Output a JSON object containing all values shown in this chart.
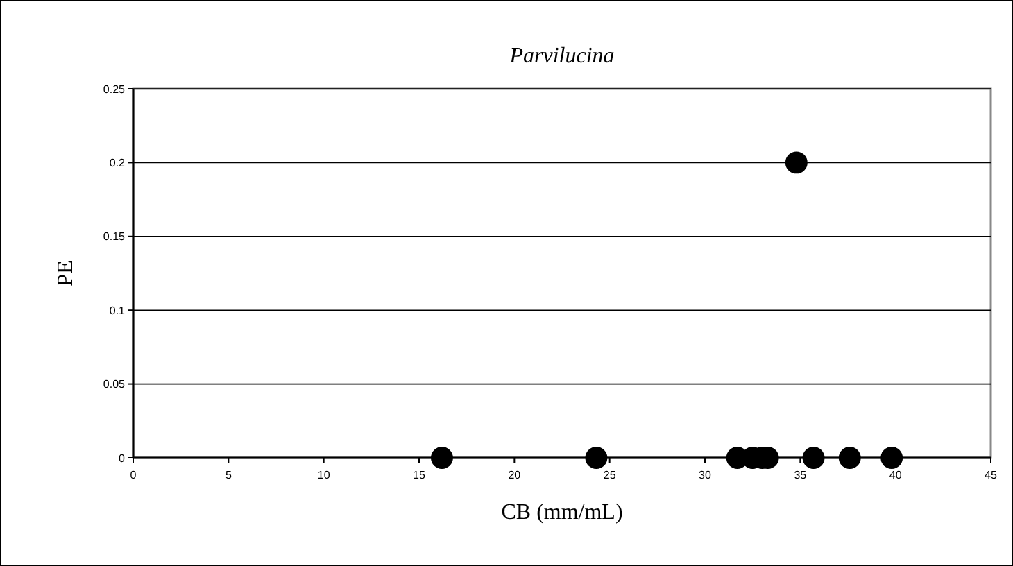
{
  "chart_data": {
    "type": "scatter",
    "title": "Parvilucina",
    "xlabel": "CB (mm/mL)",
    "ylabel": "PE",
    "x": [
      16.2,
      24.3,
      31.7,
      32.5,
      33.0,
      33.3,
      34.8,
      35.7,
      37.6,
      39.8
    ],
    "values": [
      0,
      0,
      0,
      0,
      0,
      0,
      0.2,
      0,
      0,
      0
    ],
    "color": "#000000",
    "marker": "circle",
    "grid": "y",
    "xlim": [
      0,
      45
    ],
    "xticks": [
      0,
      5,
      10,
      15,
      20,
      25,
      30,
      35,
      40,
      45
    ],
    "ylim": [
      0,
      0.25
    ],
    "yticks": [
      0,
      0.05,
      0.1,
      0.15,
      0.2,
      0.25
    ]
  }
}
